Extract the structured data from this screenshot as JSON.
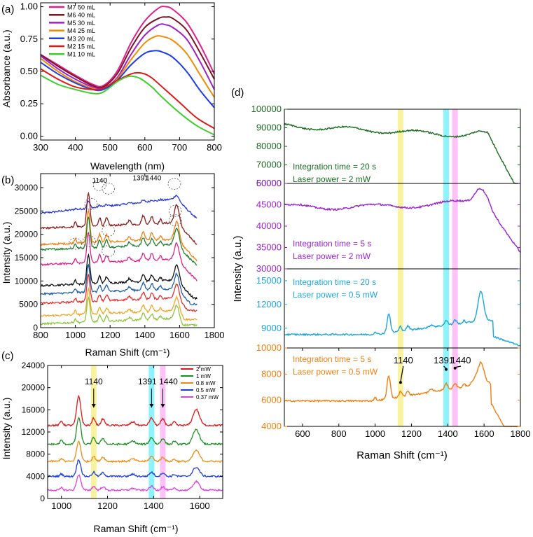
{
  "chart_data": [
    {
      "id": "a",
      "panel_label": "(a)",
      "type": "line",
      "xlabel": "Wavelength (nm)",
      "ylabel": "Absorbance (a.u.)",
      "xlim": [
        300,
        800
      ],
      "ylim": [
        -0.03,
        1.03
      ],
      "xticks": [
        300,
        400,
        500,
        600,
        700,
        800
      ],
      "yticks": [
        0.0,
        0.25,
        0.5,
        0.75,
        1.0
      ],
      "ytick_labels": [
        "0.00",
        "0.25",
        "0.50",
        "0.75",
        "1.00"
      ],
      "series": [
        {
          "name": "M7 50 mL",
          "color": "#e0218a",
          "x": [
            300,
            350,
            400,
            450,
            480,
            520,
            560,
            600,
            640,
            660,
            680,
            720,
            760,
            800
          ],
          "y": [
            0.63,
            0.55,
            0.47,
            0.4,
            0.39,
            0.5,
            0.72,
            0.89,
            0.99,
            1.0,
            0.98,
            0.88,
            0.7,
            0.48
          ]
        },
        {
          "name": "M6 40 mL",
          "color": "#7b1526",
          "x": [
            300,
            350,
            400,
            450,
            480,
            520,
            560,
            600,
            640,
            660,
            680,
            720,
            760,
            800
          ],
          "y": [
            0.63,
            0.54,
            0.46,
            0.39,
            0.38,
            0.48,
            0.68,
            0.84,
            0.91,
            0.92,
            0.91,
            0.82,
            0.64,
            0.44
          ]
        },
        {
          "name": "M5 30 mL",
          "color": "#a020c8",
          "x": [
            300,
            350,
            400,
            450,
            480,
            520,
            560,
            600,
            640,
            660,
            680,
            720,
            760,
            800
          ],
          "y": [
            0.62,
            0.52,
            0.44,
            0.38,
            0.37,
            0.45,
            0.63,
            0.78,
            0.86,
            0.86,
            0.84,
            0.75,
            0.57,
            0.36
          ]
        },
        {
          "name": "M4 25 mL",
          "color": "#f28c00",
          "x": [
            300,
            350,
            400,
            450,
            480,
            520,
            560,
            600,
            630,
            650,
            680,
            720,
            760,
            800
          ],
          "y": [
            0.6,
            0.5,
            0.42,
            0.37,
            0.36,
            0.44,
            0.59,
            0.72,
            0.77,
            0.77,
            0.74,
            0.64,
            0.47,
            0.3
          ]
        },
        {
          "name": "M3 20 mL",
          "color": "#1b3cf0",
          "x": [
            300,
            350,
            400,
            450,
            480,
            520,
            560,
            600,
            630,
            650,
            680,
            720,
            760,
            800
          ],
          "y": [
            0.57,
            0.48,
            0.41,
            0.36,
            0.36,
            0.43,
            0.55,
            0.64,
            0.66,
            0.65,
            0.61,
            0.5,
            0.35,
            0.22
          ]
        },
        {
          "name": "M2 15 mL",
          "color": "#e21818",
          "x": [
            300,
            350,
            400,
            450,
            480,
            520,
            560,
            580,
            600,
            620,
            650,
            700,
            750,
            800
          ],
          "y": [
            0.52,
            0.44,
            0.38,
            0.36,
            0.37,
            0.43,
            0.48,
            0.49,
            0.48,
            0.45,
            0.38,
            0.26,
            0.14,
            0.06
          ]
        },
        {
          "name": "M1 10 mL",
          "color": "#3fce30",
          "x": [
            300,
            350,
            400,
            450,
            480,
            520,
            550,
            570,
            590,
            620,
            650,
            700,
            750,
            800
          ],
          "y": [
            0.47,
            0.4,
            0.36,
            0.33,
            0.34,
            0.42,
            0.46,
            0.46,
            0.44,
            0.38,
            0.3,
            0.18,
            0.08,
            0.01
          ]
        }
      ]
    },
    {
      "id": "b",
      "panel_label": "(b)",
      "type": "line",
      "xlabel": "Raman Shift (cm⁻¹)",
      "ylabel": "Intensity (a.u.)",
      "xlim": [
        800,
        1800
      ],
      "ylim": [
        0,
        33000
      ],
      "xticks": [
        800,
        1000,
        1200,
        1400,
        1600,
        1800
      ],
      "yticks": [
        0,
        5000,
        10000,
        15000,
        20000,
        25000,
        30000
      ],
      "annotations": [
        "1140",
        "1391",
        "1440"
      ],
      "series": [
        {
          "color": "#2a3ad4",
          "baseline": 24500
        },
        {
          "color": "#8b1a1a",
          "baseline": 21300
        },
        {
          "color": "#f07f10",
          "baseline": 17800
        },
        {
          "color": "#1e7f2e",
          "baseline": 16700
        },
        {
          "color": "#e0218a",
          "baseline": 13500
        },
        {
          "color": "#111111",
          "baseline": 9000
        },
        {
          "color": "#1f5fa8",
          "baseline": 7200
        },
        {
          "color": "#e23030",
          "baseline": 5200
        },
        {
          "color": "#f5a623",
          "baseline": 2500
        },
        {
          "color": "#8ec63f",
          "baseline": 800
        }
      ]
    },
    {
      "id": "c",
      "panel_label": "(c)",
      "type": "line",
      "xlabel": "Raman Shift (cm⁻¹)",
      "ylabel": "Intensity (a.u.)",
      "xlim": [
        940,
        1700
      ],
      "ylim": [
        0,
        24000
      ],
      "xticks": [
        1000,
        1200,
        1400,
        1600
      ],
      "yticks": [
        0,
        4000,
        8000,
        12000,
        16000,
        20000,
        24000
      ],
      "annotations": [
        "1140",
        "1391",
        "1440"
      ],
      "highlight_bands": [
        {
          "center": 1140,
          "color": "#f7ef8a"
        },
        {
          "center": 1391,
          "color": "#6ff0ff"
        },
        {
          "center": 1440,
          "color": "#ffb3f5"
        }
      ],
      "series": [
        {
          "name": "2 mW",
          "color": "#e21818",
          "baseline": 13200
        },
        {
          "name": "1 mW",
          "color": "#1a8f20",
          "baseline": 9800
        },
        {
          "name": "0.8 mW",
          "color": "#f08a10",
          "baseline": 6700
        },
        {
          "name": "0.5 mW",
          "color": "#1a3ae8",
          "baseline": 4000
        },
        {
          "name": "0.37 mW",
          "color": "#e040e0",
          "baseline": 1500
        }
      ]
    },
    {
      "id": "d",
      "panel_label": "(d)",
      "type": "line",
      "xlabel": "Raman Shift (cm⁻¹)",
      "ylabel": "Intensity (a.u.)",
      "xlim": [
        500,
        1800
      ],
      "xticks": [
        600,
        800,
        1000,
        1200,
        1400,
        1600,
        1800
      ],
      "highlight_bands": [
        {
          "center": 1140,
          "color": "#f7ef8a"
        },
        {
          "center": 1391,
          "color": "#6ff0ff"
        },
        {
          "center": 1440,
          "color": "#ffb3f5"
        }
      ],
      "subplots": [
        {
          "color": "#1a6b1f",
          "ylim": [
            60000,
            100000
          ],
          "yticks": [
            60000,
            70000,
            80000,
            90000,
            100000
          ],
          "text1": "Integration time = 20 s",
          "text2": "Laser power = 2 mW",
          "baseline": 91000
        },
        {
          "color": "#9a22d0",
          "ylim": [
            30000,
            50000
          ],
          "yticks": [
            30000,
            35000,
            40000,
            45000,
            50000
          ],
          "text1": "Integration time = 5 s",
          "text2": "Laser power = 2 mW",
          "baseline": 44500
        },
        {
          "color": "#1aa6dd",
          "ylim": [
            6500,
            16500
          ],
          "yticks": [
            9000,
            12000,
            15000
          ],
          "text1": "Integration time = 20 s",
          "text2": "Laser power = 0.5 mW",
          "baseline": 8200
        },
        {
          "color": "#f07f10",
          "ylim": [
            4000,
            10000
          ],
          "yticks": [
            4000,
            6000,
            8000,
            10000
          ],
          "text1": "Integration time = 5 s",
          "text2": "Laser power = 0.5 mW",
          "baseline": 5950,
          "annotations": [
            "1140",
            "1391",
            "1440"
          ]
        }
      ]
    }
  ]
}
